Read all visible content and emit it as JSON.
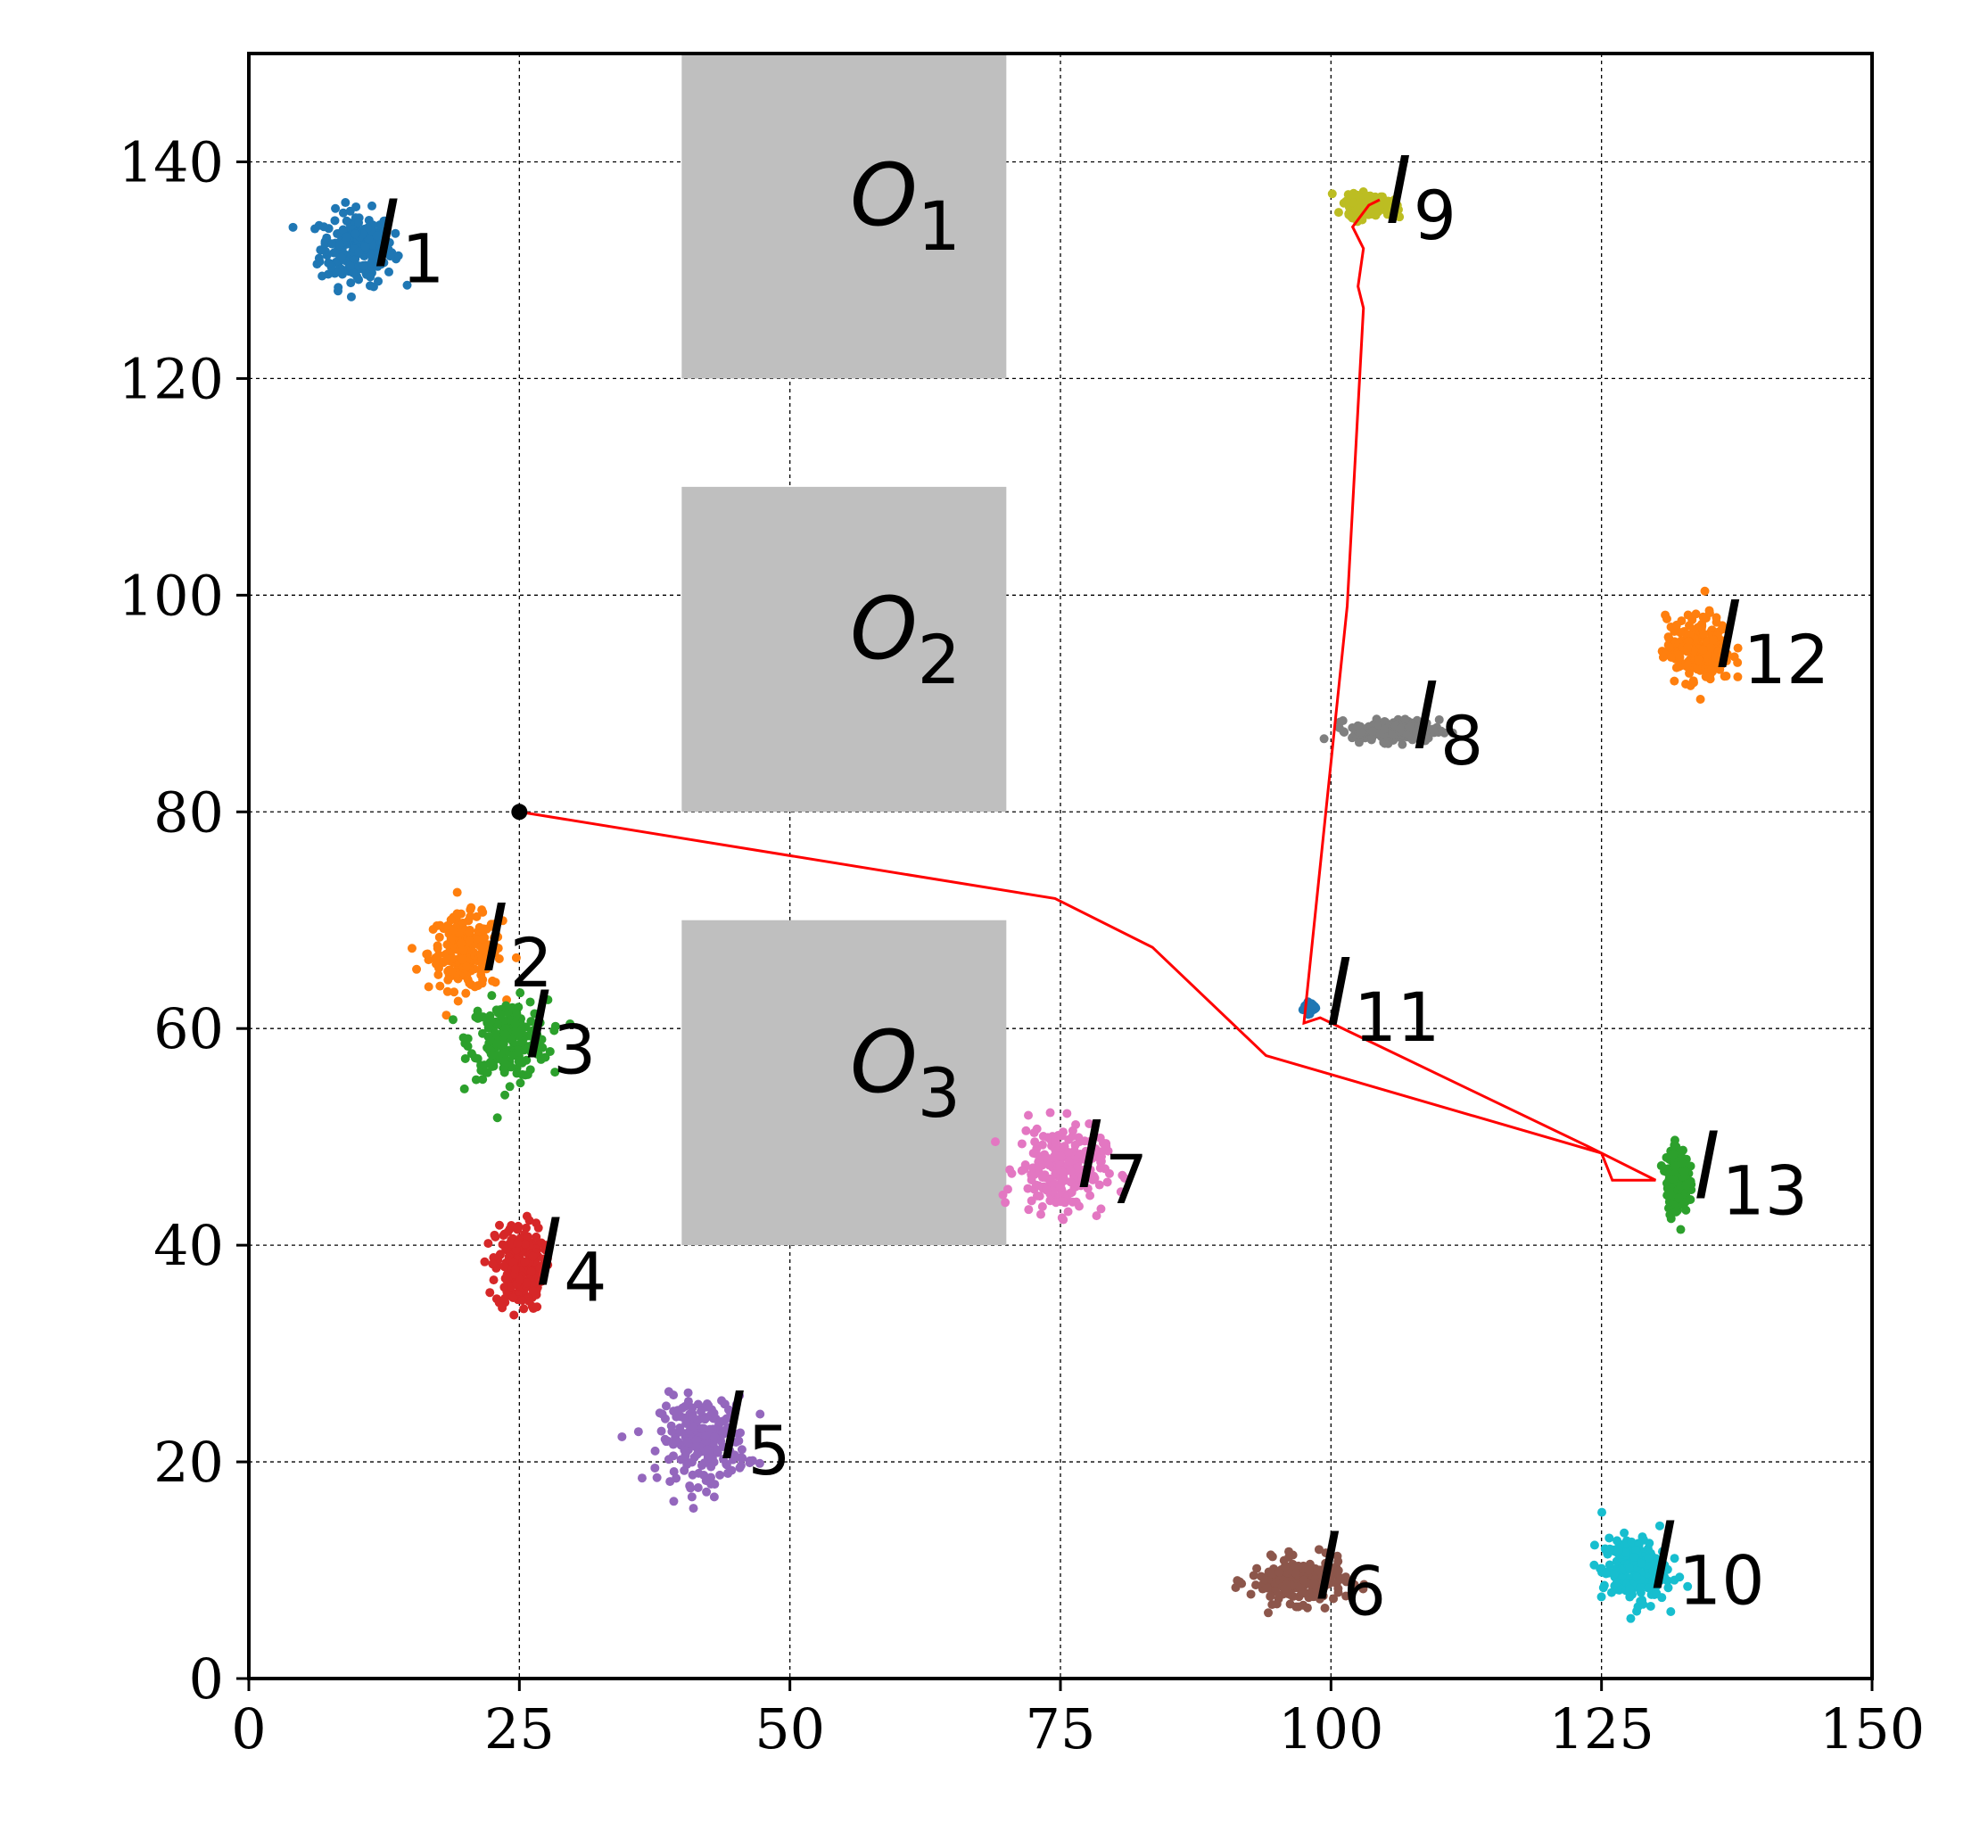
{
  "chart_data": {
    "type": "scatter",
    "title": "",
    "xlabel": "",
    "ylabel": "",
    "xlim": [
      0,
      150
    ],
    "ylim": [
      0,
      150
    ],
    "xticks": [
      0,
      25,
      50,
      75,
      100,
      125,
      150
    ],
    "yticks": [
      0,
      20,
      40,
      60,
      80,
      100,
      120,
      140
    ],
    "grid": true,
    "obstacles": [
      {
        "name": "O",
        "sub": "1",
        "x": [
          40,
          70
        ],
        "y": [
          120,
          150
        ]
      },
      {
        "name": "O",
        "sub": "2",
        "x": [
          40,
          70
        ],
        "y": [
          80,
          110
        ]
      },
      {
        "name": "O",
        "sub": "3",
        "x": [
          40,
          70
        ],
        "y": [
          40,
          70
        ]
      }
    ],
    "landmarks": [
      {
        "label": "l",
        "num": "1",
        "x": 10,
        "y": 132,
        "sx": 1.7,
        "sy": 1.7,
        "color": "#1f77b4"
      },
      {
        "label": "l",
        "num": "2",
        "x": 20,
        "y": 67,
        "sx": 1.7,
        "sy": 1.7,
        "color": "#ff7f0e"
      },
      {
        "label": "l",
        "num": "3",
        "x": 24,
        "y": 59,
        "sx": 1.8,
        "sy": 1.8,
        "color": "#2ca02c"
      },
      {
        "label": "l",
        "num": "4",
        "x": 25,
        "y": 38,
        "sx": 1.1,
        "sy": 2.0,
        "color": "#d62728"
      },
      {
        "label": "l",
        "num": "5",
        "x": 42,
        "y": 22,
        "sx": 2.0,
        "sy": 2.0,
        "color": "#9467bd"
      },
      {
        "label": "l",
        "num": "6",
        "x": 97,
        "y": 9,
        "sx": 2.2,
        "sy": 1.0,
        "color": "#8c564b"
      },
      {
        "label": "l",
        "num": "7",
        "x": 75,
        "y": 47,
        "sx": 2.0,
        "sy": 2.0,
        "color": "#e377c2"
      },
      {
        "label": "l",
        "num": "8",
        "x": 106,
        "y": 87.5,
        "sx": 2.0,
        "sy": 0.5,
        "color": "#7f7f7f"
      },
      {
        "label": "l",
        "num": "9",
        "x": 103.5,
        "y": 136,
        "sx": 1.0,
        "sy": 0.5,
        "color": "#bcbd22"
      },
      {
        "label": "l",
        "num": "10",
        "x": 128,
        "y": 10,
        "sx": 1.5,
        "sy": 1.5,
        "color": "#17becf"
      },
      {
        "label": "l",
        "num": "11",
        "x": 98,
        "y": 62,
        "sx": 0.3,
        "sy": 0.3,
        "color": "#1f77b4"
      },
      {
        "label": "l",
        "num": "12",
        "x": 134,
        "y": 95,
        "sx": 1.5,
        "sy": 1.5,
        "color": "#ff7f0e"
      },
      {
        "label": "l",
        "num": "13",
        "x": 132,
        "y": 46,
        "sx": 0.5,
        "sy": 1.5,
        "color": "#2ca02c"
      }
    ],
    "start_point": {
      "x": 25,
      "y": 80
    },
    "path": {
      "color": "#ff0000",
      "points": [
        [
          25,
          80
        ],
        [
          74.5,
          72
        ],
        [
          83.5,
          67.5
        ],
        [
          94,
          57.5
        ],
        [
          125,
          48.5
        ],
        [
          126,
          46
        ],
        [
          130,
          46
        ],
        [
          124,
          49
        ],
        [
          99,
          61
        ],
        [
          97.5,
          60.5
        ],
        [
          101.5,
          99
        ],
        [
          103,
          126.5
        ],
        [
          102.5,
          128.5
        ],
        [
          103,
          132
        ],
        [
          102,
          134
        ],
        [
          103.5,
          136
        ],
        [
          104.5,
          136.5
        ]
      ]
    }
  }
}
